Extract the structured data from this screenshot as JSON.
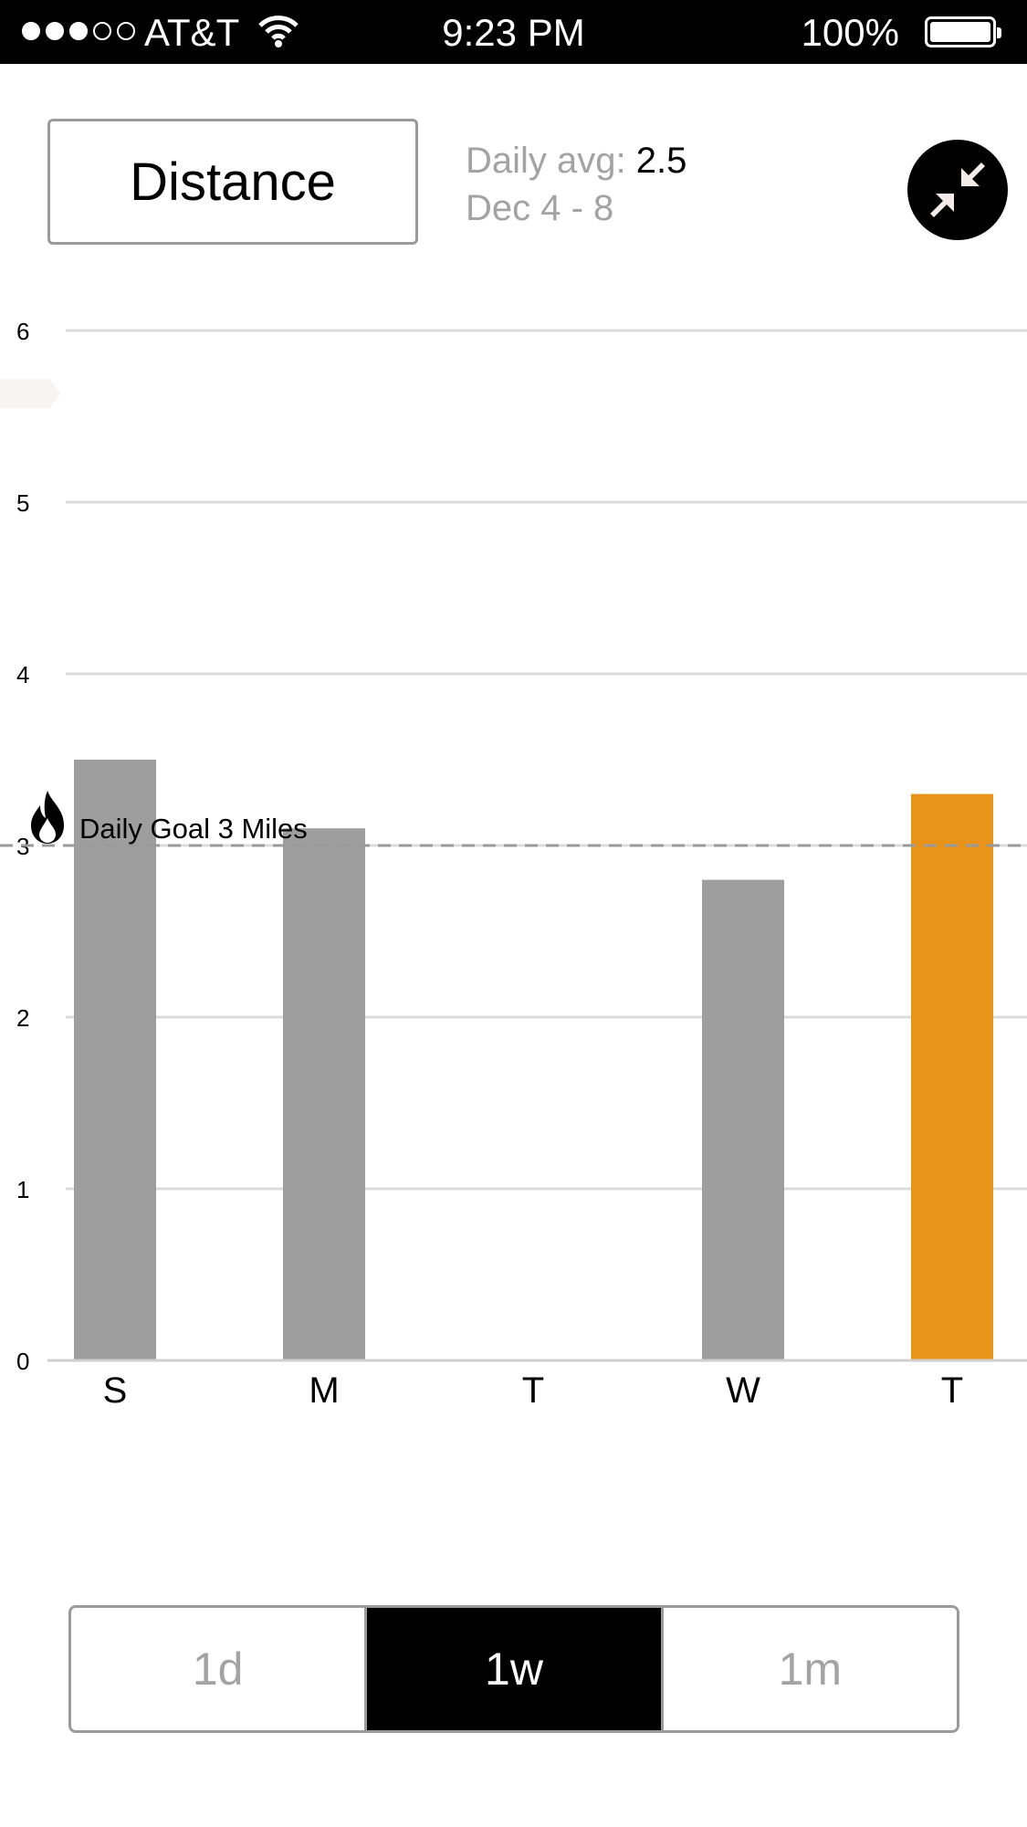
{
  "status_bar": {
    "carrier": "AT&T",
    "time": "9:23 PM",
    "battery": "100%",
    "signal_bars_filled": 3,
    "signal_bars_total": 5
  },
  "header": {
    "metric_label": "Distance",
    "daily_avg_label": "Daily avg:",
    "daily_avg_value": "2.5",
    "date_range": "Dec 4 - 8",
    "collapse_icon": "collapse-arrows-icon"
  },
  "goal": {
    "label": "Daily Goal 3 Miles",
    "value": 3,
    "icon": "flame-icon"
  },
  "chart_data": {
    "type": "bar",
    "categories": [
      "S",
      "M",
      "T",
      "W",
      "T"
    ],
    "values": [
      3.5,
      3.1,
      0,
      2.8,
      3.3
    ],
    "highlight_index": 4,
    "ylim": [
      0,
      6
    ],
    "yticks": [
      0,
      1,
      2,
      3,
      4,
      5,
      6
    ],
    "grid": true,
    "colors": {
      "bar": "#9e9e9e",
      "highlight": "#e8931a",
      "grid": "#dcdcdc",
      "goal_line": "#9a9a9a"
    }
  },
  "range_tabs": [
    {
      "label": "1d",
      "selected": false
    },
    {
      "label": "1w",
      "selected": true
    },
    {
      "label": "1m",
      "selected": false
    }
  ]
}
